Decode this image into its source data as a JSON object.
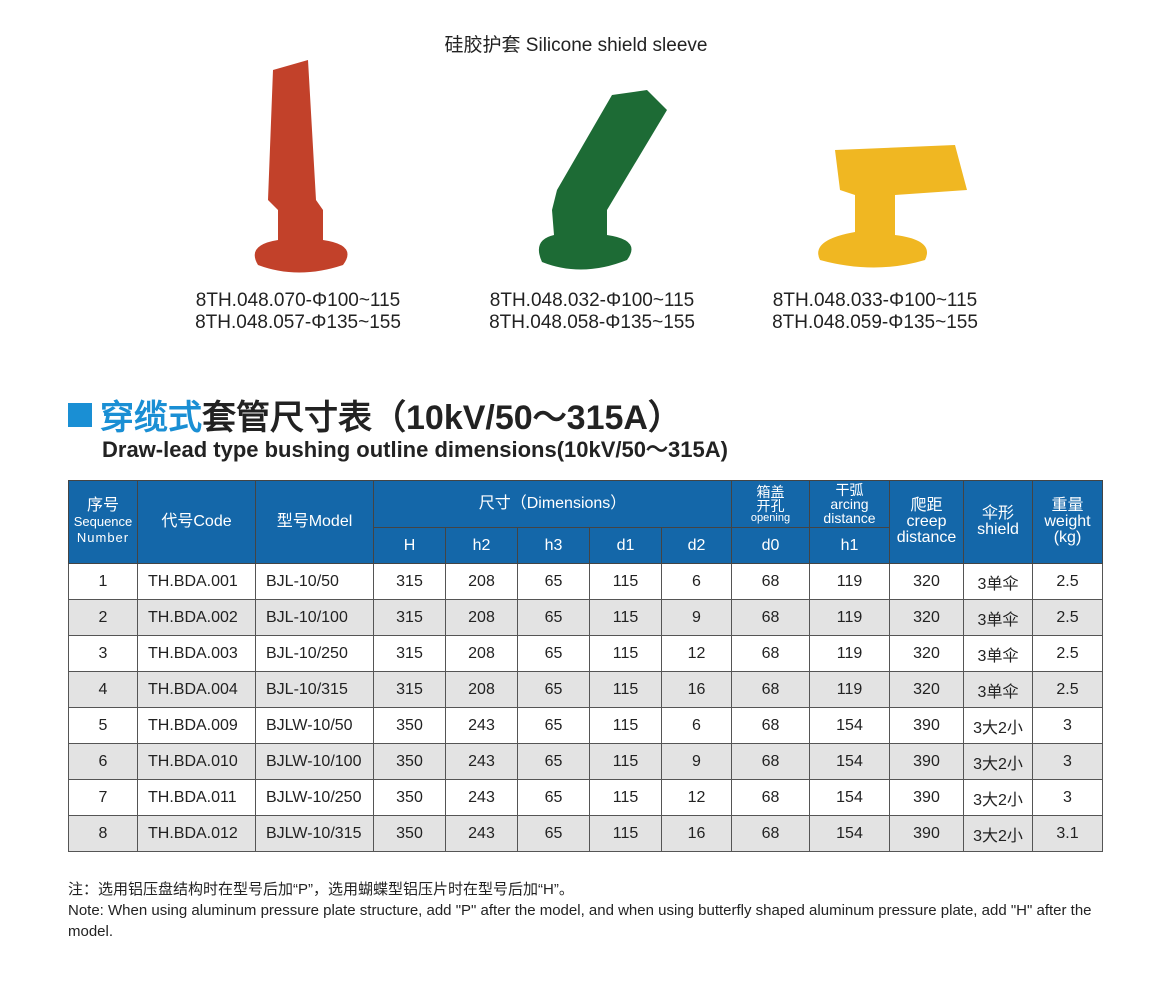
{
  "top_title": "硅胶护套   Silicone shield sleeve",
  "products": [
    {
      "color": "#c2412a",
      "labels": [
        "8TH.048.070-Φ100~115",
        "8TH.048.057-Φ135~155"
      ]
    },
    {
      "color": "#1d6b35",
      "labels": [
        "8TH.048.032-Φ100~115",
        "8TH.048.058-Φ135~155"
      ]
    },
    {
      "color": "#f0b722",
      "labels": [
        "8TH.048.033-Φ100~115",
        "8TH.048.059-Φ135~155"
      ]
    }
  ],
  "heading": {
    "cn_blue": "穿缆式",
    "cn_black": "套管尺寸表（10kV/50～315A）",
    "en": "Draw-lead type bushing outline dimensions(10kV/50～315A)",
    "accent": "#1a8fd4"
  },
  "table": {
    "header_color": "#1467a9",
    "headers": {
      "seq_cn": "序号",
      "seq_en1": "Sequence",
      "seq_en2": "Number",
      "code": "代号Code",
      "model": "型号Model",
      "dims": "尺寸（Dimensions）",
      "opening_cn1": "箱盖",
      "opening_cn2": "开孔",
      "opening_en": "opening",
      "arc_cn": "干弧",
      "arc_en1": "arcing",
      "arc_en2": "distance",
      "creep_cn": "爬距",
      "creep_en1": "creep",
      "creep_en2": "distance",
      "shield_cn": "伞形",
      "shield_en": "shield",
      "weight_cn": "重量",
      "weight_en": "weight",
      "weight_unit": "(kg)"
    },
    "subheaders": [
      "H",
      "h2",
      "h3",
      "d1",
      "d2",
      "d0",
      "h1"
    ],
    "rows": [
      [
        "1",
        "TH.BDA.001",
        "BJL-10/50",
        "315",
        "208",
        "65",
        "115",
        "6",
        "68",
        "119",
        "320",
        "3单伞",
        "2.5"
      ],
      [
        "2",
        "TH.BDA.002",
        "BJL-10/100",
        "315",
        "208",
        "65",
        "115",
        "9",
        "68",
        "119",
        "320",
        "3单伞",
        "2.5"
      ],
      [
        "3",
        "TH.BDA.003",
        "BJL-10/250",
        "315",
        "208",
        "65",
        "115",
        "12",
        "68",
        "119",
        "320",
        "3单伞",
        "2.5"
      ],
      [
        "4",
        "TH.BDA.004",
        "BJL-10/315",
        "315",
        "208",
        "65",
        "115",
        "16",
        "68",
        "119",
        "320",
        "3单伞",
        "2.5"
      ],
      [
        "5",
        "TH.BDA.009",
        "BJLW-10/50",
        "350",
        "243",
        "65",
        "115",
        "6",
        "68",
        "154",
        "390",
        "3大2小",
        "3"
      ],
      [
        "6",
        "TH.BDA.010",
        "BJLW-10/100",
        "350",
        "243",
        "65",
        "115",
        "9",
        "68",
        "154",
        "390",
        "3大2小",
        "3"
      ],
      [
        "7",
        "TH.BDA.011",
        "BJLW-10/250",
        "350",
        "243",
        "65",
        "115",
        "12",
        "68",
        "154",
        "390",
        "3大2小",
        "3"
      ],
      [
        "8",
        "TH.BDA.012",
        "BJLW-10/315",
        "350",
        "243",
        "65",
        "115",
        "16",
        "68",
        "154",
        "390",
        "3大2小",
        "3.1"
      ]
    ]
  },
  "note_cn": "注：选用铝压盘结构时在型号后加“P”，选用蝴蝶型铝压片时在型号后加“H”。",
  "note_en": "Note: When using aluminum pressure plate structure, add \"P\" after the model, and when using butterfly shaped aluminum pressure plate, add \"H\" after the model."
}
